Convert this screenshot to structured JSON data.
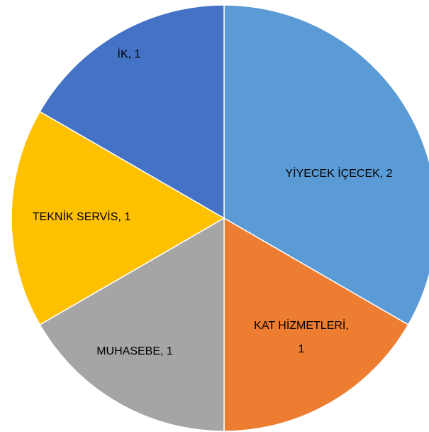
{
  "chart_data": {
    "type": "pie",
    "categories": [
      "YİYECEK İÇECEK",
      "KAT HİZMETLERİ",
      "MUHASEBE",
      "TEKNİK SERVİS",
      "İK"
    ],
    "values": [
      2,
      1,
      1,
      1,
      1
    ],
    "colors": [
      "#5b9bd5",
      "#ed7d31",
      "#a5a5a5",
      "#ffc000",
      "#4472c4"
    ]
  }
}
